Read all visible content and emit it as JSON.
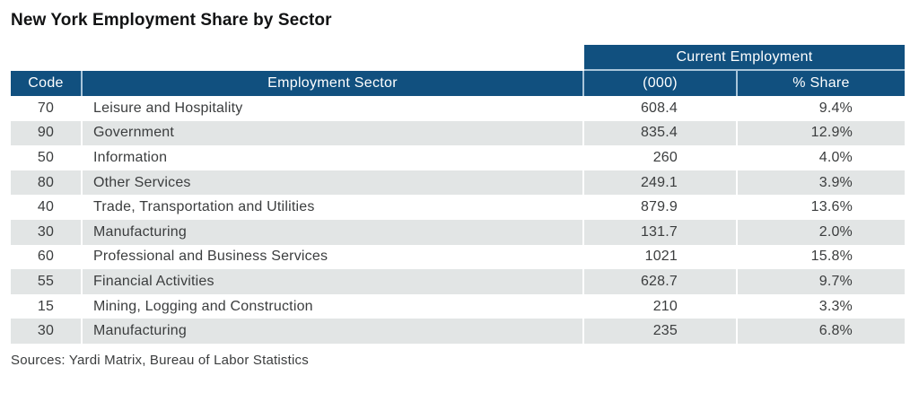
{
  "title": "New York Employment Share by Sector",
  "table": {
    "header": {
      "code": "Code",
      "sector": "Employment Sector",
      "group": "Current Employment",
      "thousands": "(000)",
      "share": "% Share"
    },
    "rows": [
      {
        "code": "70",
        "sector": "Leisure and Hospitality",
        "thousands": "608.4",
        "share": "9.4%"
      },
      {
        "code": "90",
        "sector": "Government",
        "thousands": "835.4",
        "share": "12.9%"
      },
      {
        "code": "50",
        "sector": "Information",
        "thousands": "260",
        "share": "4.0%"
      },
      {
        "code": "80",
        "sector": "Other Services",
        "thousands": "249.1",
        "share": "3.9%"
      },
      {
        "code": "40",
        "sector": "Trade, Transportation and Utilities",
        "thousands": "879.9",
        "share": "13.6%"
      },
      {
        "code": "30",
        "sector": "Manufacturing",
        "thousands": "131.7",
        "share": "2.0%"
      },
      {
        "code": "60",
        "sector": "Professional and Business Services",
        "thousands": "1021",
        "share": "15.8%"
      },
      {
        "code": "55",
        "sector": "Financial Activities",
        "thousands": "628.7",
        "share": "9.7%"
      },
      {
        "code": "15",
        "sector": "Mining, Logging and Construction",
        "thousands": "210",
        "share": "3.3%"
      },
      {
        "code": "30",
        "sector": "Manufacturing",
        "thousands": "235",
        "share": "6.8%"
      }
    ]
  },
  "footer": {
    "sources": "Sources: Yardi Matrix, Bureau of Labor Statistics"
  },
  "colors": {
    "header_blue": "#11507f",
    "header_divider": "#a9c5da",
    "row_alt_gray": "#e2e5e5",
    "text_dark": "#3b3d3e"
  },
  "chart_data": {
    "type": "table",
    "title": "New York Employment Share by Sector",
    "columns": [
      "Code",
      "Employment Sector",
      "Current Employment (000)",
      "Current Employment % Share"
    ],
    "rows": [
      [
        70,
        "Leisure and Hospitality",
        608.4,
        "9.4%"
      ],
      [
        90,
        "Government",
        835.4,
        "12.9%"
      ],
      [
        50,
        "Information",
        260,
        "4.0%"
      ],
      [
        80,
        "Other Services",
        249.1,
        "3.9%"
      ],
      [
        40,
        "Trade, Transportation and Utilities",
        879.9,
        "13.6%"
      ],
      [
        30,
        "Manufacturing",
        131.7,
        "2.0%"
      ],
      [
        60,
        "Professional and Business Services",
        1021,
        "15.8%"
      ],
      [
        55,
        "Financial Activities",
        628.7,
        "9.7%"
      ],
      [
        15,
        "Mining, Logging and Construction",
        210,
        "3.3%"
      ],
      [
        30,
        "Manufacturing",
        235,
        "6.8%"
      ]
    ],
    "source": "Sources: Yardi Matrix, Bureau of Labor Statistics"
  }
}
